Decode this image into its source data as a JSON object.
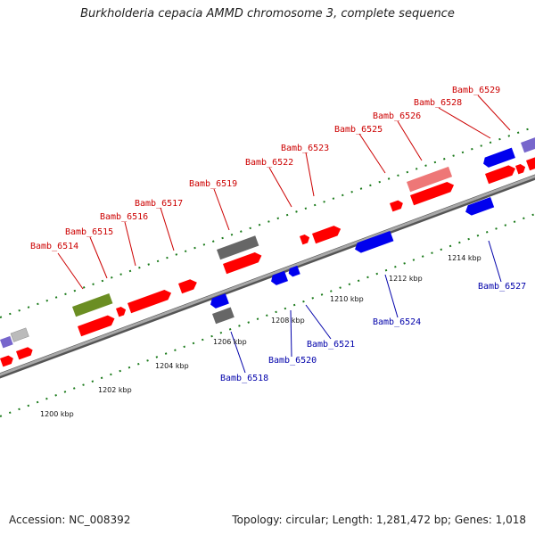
{
  "title": "Burkholderia cepacia AMMD chromosome 3, complete sequence",
  "footer": {
    "accession": "Accession: NC_008392",
    "topology": "Topology: circular; Length: 1,281,472 bp; Genes: 1,018"
  },
  "colors": {
    "forward_label": "#cc0000",
    "reverse_label": "#0000aa",
    "gene_red": "#ff0000",
    "gene_blue": "#0000ee",
    "gene_gray": "#666666",
    "gene_olive": "#6b8e23",
    "gene_pink": "#ee7777",
    "gene_purple": "#7766cc",
    "backbone": "#888888",
    "tick": "#1a7a1a"
  },
  "scale_labels": [
    "1200 kbp",
    "1202 kbp",
    "1204 kbp",
    "1206 kbp",
    "1208 kbp",
    "1210 kbp",
    "1212 kbp",
    "1214 kbp"
  ],
  "forward_genes": [
    "Bamb_6514",
    "Bamb_6515",
    "Bamb_6516",
    "Bamb_6517",
    "Bamb_6519",
    "Bamb_6522",
    "Bamb_6523",
    "Bamb_6525",
    "Bamb_6526",
    "Bamb_6528",
    "Bamb_6529"
  ],
  "reverse_genes": [
    "Bamb_6518",
    "Bamb_6520",
    "Bamb_6521",
    "Bamb_6524",
    "Bamb_6527"
  ]
}
